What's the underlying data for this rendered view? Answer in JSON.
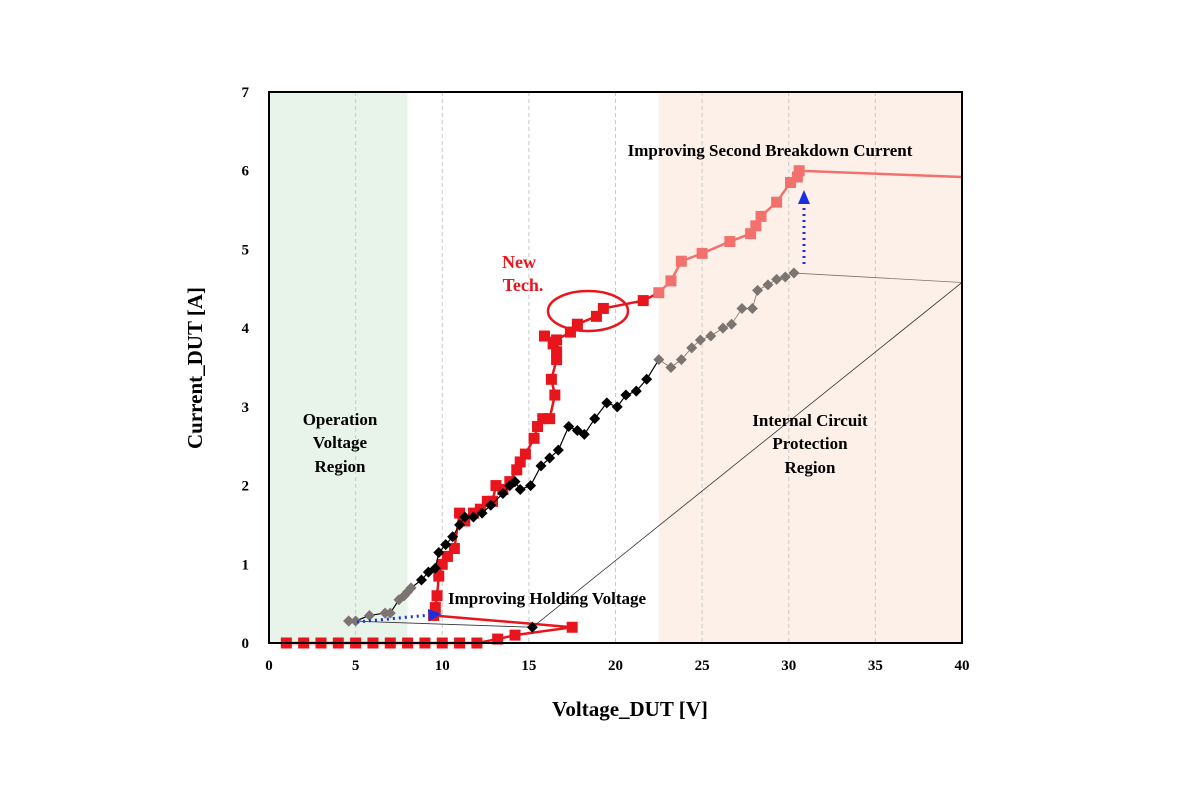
{
  "chart_data": {
    "type": "scatter",
    "title": "",
    "xlabel": "Voltage_DUT [V]",
    "ylabel": "Current_DUT [A]",
    "xlim": [
      0,
      40
    ],
    "ylim": [
      0,
      7
    ],
    "xticks": [
      "0",
      "5",
      "10",
      "15",
      "20",
      "25",
      "30",
      "35",
      "40"
    ],
    "yticks": [
      "0",
      "1",
      "2",
      "3",
      "4",
      "5",
      "6",
      "7"
    ],
    "grid": "vertical-dashed",
    "legend": "none",
    "regions": [
      {
        "label_lines": [
          "Operation",
          "Voltage",
          "Region"
        ],
        "x_range": [
          0,
          8
        ],
        "color": "#e8f3ea"
      },
      {
        "label_lines": [
          "Internal Circuit",
          "Protection",
          "Region"
        ],
        "x_range": [
          22.5,
          40
        ],
        "color": "#fdf0e9"
      }
    ],
    "annotations": [
      {
        "text": "Improving Second Breakdown Current"
      },
      {
        "text": "Improving Holding Voltage"
      },
      {
        "text_lines": [
          "New",
          "Tech."
        ]
      }
    ],
    "colors": {
      "new_tech": "#e8161c",
      "new_tech_faded": "#f2716e",
      "conventional": "#000000",
      "conventional_faded": "#7b7470",
      "arrow": "#1a2fe0"
    },
    "series": [
      {
        "marker": "square",
        "color": "#e8161c",
        "points": [
          [
            1.0,
            0.0
          ],
          [
            2.0,
            0.0
          ],
          [
            3.0,
            0.0
          ],
          [
            4.0,
            0.0
          ],
          [
            5.0,
            0.0
          ],
          [
            6.0,
            0.0
          ],
          [
            7.0,
            0.0
          ],
          [
            8.0,
            0.0
          ],
          [
            9.0,
            0.0
          ],
          [
            10.0,
            0.0
          ],
          [
            11.0,
            0.0
          ],
          [
            12.0,
            0.0
          ],
          [
            13.2,
            0.05
          ],
          [
            14.2,
            0.1
          ],
          [
            17.5,
            0.2
          ],
          [
            9.5,
            0.35
          ],
          [
            9.6,
            0.45
          ],
          [
            9.7,
            0.6
          ],
          [
            9.8,
            0.85
          ],
          [
            10.0,
            1.0
          ],
          [
            10.3,
            1.1
          ],
          [
            10.7,
            1.2
          ],
          [
            11.0,
            1.65
          ],
          [
            11.3,
            1.55
          ],
          [
            11.8,
            1.65
          ],
          [
            12.2,
            1.7
          ],
          [
            12.6,
            1.8
          ],
          [
            12.9,
            1.8
          ],
          [
            13.1,
            2.0
          ],
          [
            13.5,
            1.95
          ],
          [
            13.9,
            2.05
          ],
          [
            14.3,
            2.2
          ],
          [
            14.5,
            2.3
          ],
          [
            14.8,
            2.4
          ],
          [
            15.3,
            2.6
          ],
          [
            15.5,
            2.75
          ],
          [
            15.8,
            2.85
          ],
          [
            16.2,
            2.85
          ],
          [
            16.5,
            3.15
          ],
          [
            16.3,
            3.35
          ],
          [
            16.6,
            3.6
          ],
          [
            16.6,
            3.7
          ],
          [
            16.4,
            3.8
          ],
          [
            15.9,
            3.9
          ],
          [
            16.6,
            3.85
          ],
          [
            17.4,
            3.95
          ],
          [
            17.8,
            4.05
          ],
          [
            18.9,
            4.15
          ],
          [
            19.3,
            4.25
          ],
          [
            21.6,
            4.35
          ],
          [
            22.5,
            4.45
          ],
          [
            23.2,
            4.6
          ],
          [
            23.8,
            4.85
          ],
          [
            25.0,
            4.95
          ],
          [
            26.6,
            5.1
          ],
          [
            27.8,
            5.2
          ],
          [
            28.1,
            5.3
          ],
          [
            28.4,
            5.42
          ],
          [
            29.3,
            5.6
          ],
          [
            30.1,
            5.85
          ],
          [
            30.5,
            5.92
          ],
          [
            30.6,
            6.0
          ],
          [
            40.0,
            5.92
          ]
        ]
      },
      {
        "marker": "diamond",
        "color": "#000000",
        "points": [
          [
            4.6,
            0.28
          ],
          [
            5.0,
            0.28
          ],
          [
            5.8,
            0.35
          ],
          [
            6.7,
            0.38
          ],
          [
            7.0,
            0.38
          ],
          [
            7.5,
            0.55
          ],
          [
            7.8,
            0.6
          ],
          [
            8.0,
            0.65
          ],
          [
            8.2,
            0.7
          ],
          [
            8.8,
            0.8
          ],
          [
            9.2,
            0.9
          ],
          [
            9.6,
            0.95
          ],
          [
            9.8,
            1.15
          ],
          [
            10.2,
            1.25
          ],
          [
            10.6,
            1.35
          ],
          [
            11.0,
            1.5
          ],
          [
            11.3,
            1.6
          ],
          [
            11.8,
            1.6
          ],
          [
            12.3,
            1.65
          ],
          [
            12.8,
            1.75
          ],
          [
            13.5,
            1.9
          ],
          [
            13.9,
            2.0
          ],
          [
            14.2,
            2.05
          ],
          [
            14.5,
            1.95
          ],
          [
            15.1,
            2.0
          ],
          [
            15.7,
            2.25
          ],
          [
            16.2,
            2.35
          ],
          [
            16.7,
            2.45
          ],
          [
            17.3,
            2.75
          ],
          [
            17.8,
            2.7
          ],
          [
            18.2,
            2.65
          ],
          [
            18.8,
            2.85
          ],
          [
            19.5,
            3.05
          ],
          [
            20.1,
            3.0
          ],
          [
            20.6,
            3.15
          ],
          [
            21.2,
            3.2
          ],
          [
            21.8,
            3.35
          ],
          [
            22.5,
            3.6
          ],
          [
            23.2,
            3.5
          ],
          [
            23.8,
            3.6
          ],
          [
            24.4,
            3.75
          ],
          [
            24.9,
            3.85
          ],
          [
            25.5,
            3.9
          ],
          [
            26.2,
            4.0
          ],
          [
            26.7,
            4.05
          ],
          [
            27.3,
            4.25
          ],
          [
            27.9,
            4.25
          ],
          [
            28.2,
            4.48
          ],
          [
            28.8,
            4.55
          ],
          [
            29.3,
            4.62
          ],
          [
            29.8,
            4.65
          ],
          [
            30.3,
            4.7
          ],
          [
            40.0,
            4.58
          ],
          [
            15.2,
            0.2
          ],
          [
            4.6,
            0.28
          ]
        ]
      }
    ]
  }
}
